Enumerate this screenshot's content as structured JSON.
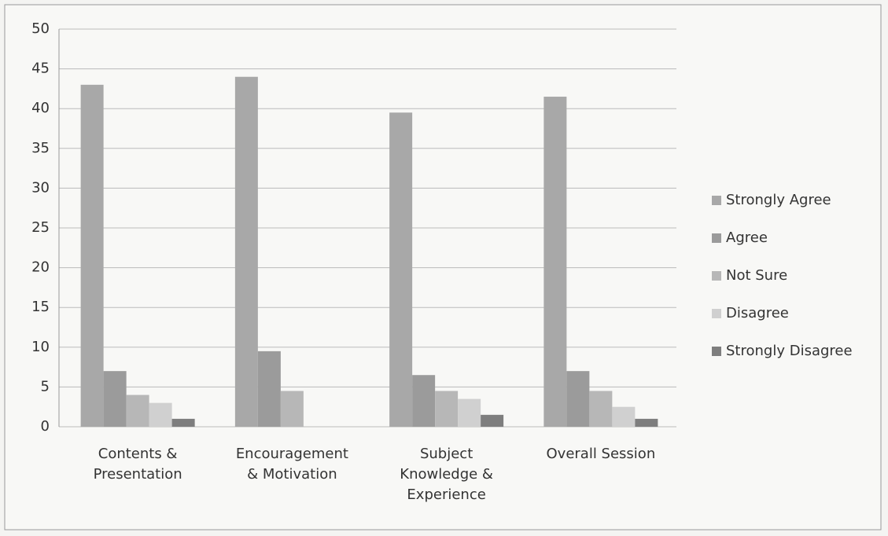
{
  "chart_data": {
    "type": "bar",
    "categories": [
      "Contents & Presentation",
      "Encouragement & Motivation",
      "Subject Knowledge & Experience",
      "Overall Session"
    ],
    "series": [
      {
        "name": "Strongly Agree",
        "color": "#a8a8a8",
        "values": [
          43,
          44,
          39.5,
          41.5
        ]
      },
      {
        "name": "Agree",
        "color": "#9b9b9b",
        "values": [
          7,
          9.5,
          6.5,
          7
        ]
      },
      {
        "name": "Not Sure",
        "color": "#b7b7b7",
        "values": [
          4,
          4.5,
          4.5,
          4.5
        ]
      },
      {
        "name": "Disagree",
        "color": "#d0d0d0",
        "values": [
          3,
          0,
          3.5,
          2.5
        ]
      },
      {
        "name": "Strongly Disagree",
        "color": "#7e7e7e",
        "values": [
          1,
          0,
          1.5,
          1
        ]
      }
    ],
    "ylim": [
      0,
      50
    ],
    "yticks": [
      0,
      5,
      10,
      15,
      20,
      25,
      30,
      35,
      40,
      45,
      50
    ],
    "grid": true,
    "legend": "right"
  }
}
